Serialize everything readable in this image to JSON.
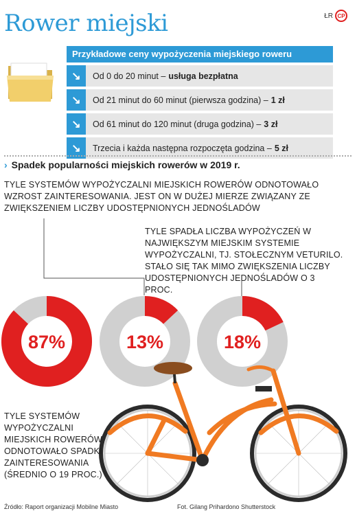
{
  "title": "Rower miejski",
  "brand": {
    "initials": "ŁR",
    "logo": "CP"
  },
  "prices": {
    "header": "Przykładowe ceny wypożyczenia miejskiego roweru",
    "rows": [
      {
        "text": "Od 0 do 20 minut –",
        "bold": "usługa bezpłatna"
      },
      {
        "text": "Od 21 minut do 60 minut (pierwsza godzina) –",
        "bold": "1 zł"
      },
      {
        "text": "Od 61 minut do 120 minut (druga godzina) –",
        "bold": "3 zł"
      },
      {
        "text": "Trzecia i każda następna rozpoczęta godzina –",
        "bold": "5 zł"
      }
    ]
  },
  "subtitle": "Spadek popularności miejskich rowerów w 2019 r.",
  "annotations": {
    "text1": "Tyle systemów wypożyczalni miejskich rowerów odnotowało wzrost zainteresowania. Jest on w dużej mierze związany ze zwiększeniem liczby udostępnionych jednośladów",
    "text2": "Tyle spadła liczba wypożyczeń w największym miejskim systemie wypożyczalni, tj. stołecznym Veturilo. Stało się tak mimo zwiększenia liczby udostępnionych jednośladów o 3 proc.",
    "text3": "Tyle systemów wypożyczalni miejskich rowerów odnotowało spadki zainteresowania (średnio o 19 proc.)"
  },
  "source": "Źródło: Raport organizacji Mobilne Miasto",
  "photo_credit": "Fot. Gilang Prihardono Shutterstock",
  "colors": {
    "accent_blue": "#2d9ad6",
    "red": "#e02020",
    "grey": "#d0d0d0",
    "bike_orange": "#f07a22"
  },
  "chart_data": {
    "type": "pie",
    "charts": [
      {
        "value": 87,
        "label": "87%"
      },
      {
        "value": 13,
        "label": "13%"
      },
      {
        "value": 18,
        "label": "18%"
      }
    ]
  }
}
